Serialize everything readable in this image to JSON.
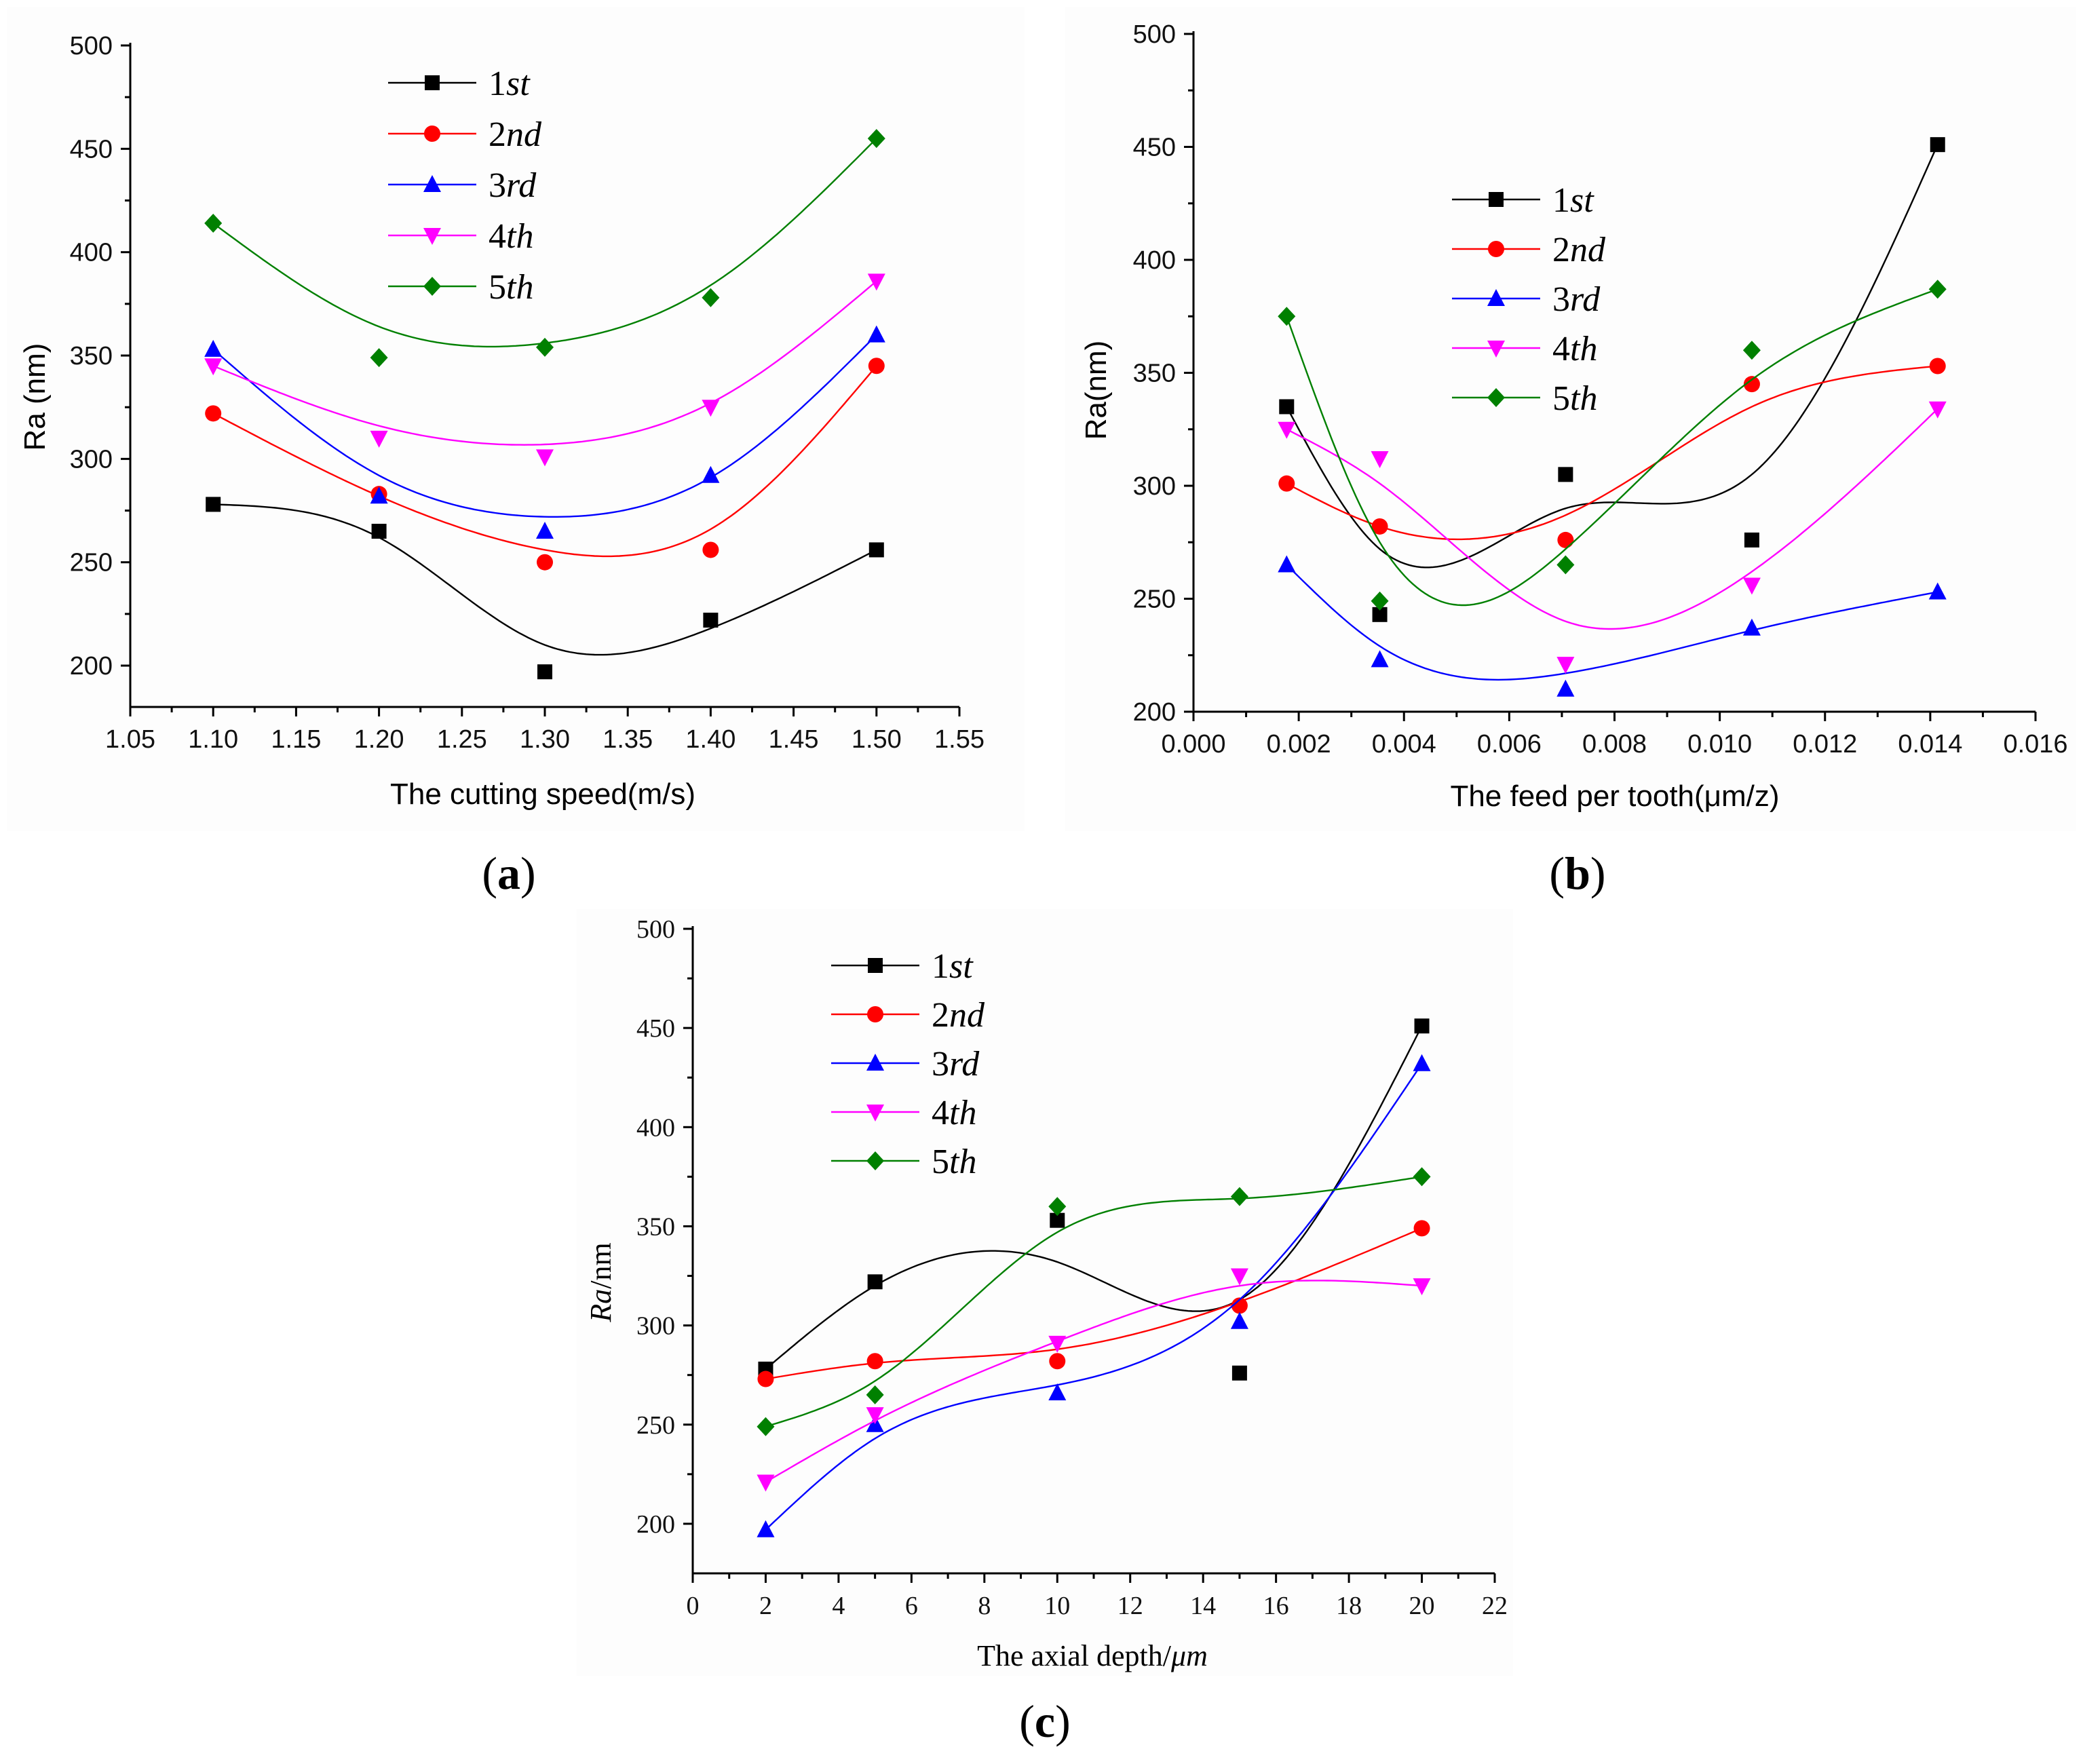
{
  "colors": {
    "1st": "#000000",
    "2nd": "#ff0000",
    "3rd": "#0000ff",
    "4th": "#ff00ff",
    "5th": "#008000"
  },
  "chart_data": [
    {
      "id": "a",
      "type": "scatter",
      "label": "a",
      "xlabel": "The cutting speed(m/s)",
      "ylabel": "Ra (nm)",
      "xlim": [
        1.05,
        1.55
      ],
      "ylim": [
        180,
        500
      ],
      "xticks": [
        1.05,
        1.1,
        1.15,
        1.2,
        1.25,
        1.3,
        1.35,
        1.4,
        1.45,
        1.5,
        1.55
      ],
      "xtick_labels": [
        "1.05",
        "1.10",
        "1.15",
        "1.20",
        "1.25",
        "1.30",
        "1.35",
        "1.40",
        "1.45",
        "1.50",
        "1.55"
      ],
      "yticks": [
        200,
        250,
        300,
        350,
        400,
        450,
        500
      ],
      "ytick_labels": [
        "200",
        "250",
        "300",
        "350",
        "400",
        "450",
        "500"
      ],
      "x": [
        1.1,
        1.2,
        1.3,
        1.4,
        1.5
      ],
      "series": [
        {
          "name": "1st",
          "num": "1",
          "suffix": "st",
          "marker": "square",
          "values": [
            278,
            265,
            197,
            222,
            256
          ],
          "fit": [
            278,
            262,
            210,
            218,
            256
          ]
        },
        {
          "name": "2nd",
          "num": "2",
          "suffix": "nd",
          "marker": "circle",
          "values": [
            322,
            283,
            250,
            256,
            345
          ],
          "fit": [
            322,
            282,
            256,
            266,
            345
          ]
        },
        {
          "name": "3rd",
          "num": "3",
          "suffix": "rd",
          "marker": "triangle-up",
          "values": [
            353,
            282,
            265,
            292,
            360
          ],
          "fit": [
            353,
            292,
            272,
            291,
            360
          ]
        },
        {
          "name": "4th",
          "num": "4",
          "suffix": "th",
          "marker": "triangle-down",
          "values": [
            345,
            310,
            301,
            325,
            386
          ],
          "fit": [
            345,
            316,
            307,
            327,
            386
          ]
        },
        {
          "name": "5th",
          "num": "5",
          "suffix": "th",
          "marker": "diamond",
          "values": [
            414,
            349,
            354,
            378,
            455
          ],
          "fit": [
            414,
            364,
            356,
            384,
            455
          ]
        }
      ]
    },
    {
      "id": "b",
      "type": "scatter",
      "label": "b",
      "xlabel": "The feed per tooth(μm/z)",
      "ylabel": "Ra(nm)",
      "xlim": [
        0.0,
        0.016
      ],
      "ylim": [
        200,
        500
      ],
      "xticks": [
        0.0,
        0.002,
        0.004,
        0.006,
        0.008,
        0.01,
        0.012,
        0.014,
        0.016
      ],
      "xtick_labels": [
        "0.000",
        "0.002",
        "0.004",
        "0.006",
        "0.008",
        "0.010",
        "0.012",
        "0.014",
        "0.016"
      ],
      "yticks": [
        200,
        250,
        300,
        350,
        400,
        450,
        500
      ],
      "ytick_labels": [
        "200",
        "250",
        "300",
        "350",
        "400",
        "450",
        "500"
      ],
      "x": [
        0.00177,
        0.00354,
        0.00707,
        0.01061,
        0.01414
      ],
      "series": [
        {
          "name": "1st",
          "num": "1",
          "suffix": "st",
          "marker": "square",
          "values": [
            335,
            243,
            305,
            276,
            451
          ],
          "fit": [
            335,
            272,
            290,
            305,
            451
          ]
        },
        {
          "name": "2nd",
          "num": "2",
          "suffix": "nd",
          "marker": "circle",
          "values": [
            301,
            282,
            276,
            345,
            353
          ],
          "fit": [
            301,
            282,
            287,
            335,
            353
          ]
        },
        {
          "name": "3rd",
          "num": "3",
          "suffix": "rd",
          "marker": "triangle-up",
          "values": [
            265,
            223,
            210,
            237,
            253
          ],
          "fit": [
            265,
            229,
            217,
            236,
            253
          ]
        },
        {
          "name": "4th",
          "num": "4",
          "suffix": "th",
          "marker": "triangle-down",
          "values": [
            325,
            312,
            221,
            256,
            334
          ],
          "fit": [
            325,
            301,
            240,
            262,
            334
          ]
        },
        {
          "name": "5th",
          "num": "5",
          "suffix": "th",
          "marker": "diamond",
          "values": [
            375,
            249,
            265,
            360,
            387
          ],
          "fit": [
            375,
            275,
            272,
            347,
            387
          ]
        }
      ]
    },
    {
      "id": "c",
      "type": "scatter",
      "label": "c",
      "xlabel": "The axial depth/μm",
      "xlabel_plain": "The axial depth/",
      "xlabel_italic": "μm",
      "ylabel": "Ra/nm",
      "ylabel_italic": "Ra",
      "ylabel_plain": "/nm",
      "xlim": [
        0,
        22
      ],
      "ylim": [
        175,
        500
      ],
      "xticks": [
        0,
        2,
        4,
        6,
        8,
        10,
        12,
        14,
        16,
        18,
        20,
        22
      ],
      "xtick_labels": [
        "0",
        "2",
        "4",
        "6",
        "8",
        "10",
        "12",
        "14",
        "16",
        "18",
        "20",
        "22"
      ],
      "yticks": [
        200,
        250,
        300,
        350,
        400,
        450,
        500
      ],
      "ytick_labels": [
        "200",
        "250",
        "300",
        "350",
        "400",
        "450",
        "500"
      ],
      "x": [
        2,
        5,
        10,
        15,
        20
      ],
      "series": [
        {
          "name": "1st",
          "num": "1",
          "suffix": "st",
          "marker": "square",
          "values": [
            278,
            322,
            353,
            276,
            451
          ],
          "fit": [
            278,
            320,
            332,
            313,
            451
          ]
        },
        {
          "name": "2nd",
          "num": "2",
          "suffix": "nd",
          "marker": "circle",
          "values": [
            273,
            282,
            282,
            310,
            349
          ],
          "fit": [
            273,
            281,
            288,
            312,
            349
          ]
        },
        {
          "name": "3rd",
          "num": "3",
          "suffix": "rd",
          "marker": "triangle-up",
          "values": [
            197,
            250,
            266,
            302,
            432
          ],
          "fit": [
            197,
            243,
            270,
            313,
            432
          ]
        },
        {
          "name": "4th",
          "num": "4",
          "suffix": "th",
          "marker": "triangle-down",
          "values": [
            221,
            255,
            291,
            325,
            320
          ],
          "fit": [
            221,
            252,
            292,
            320,
            320
          ]
        },
        {
          "name": "5th",
          "num": "5",
          "suffix": "th",
          "marker": "diamond",
          "values": [
            249,
            265,
            360,
            365,
            375
          ],
          "fit": [
            249,
            272,
            347,
            364,
            375
          ]
        }
      ]
    }
  ]
}
